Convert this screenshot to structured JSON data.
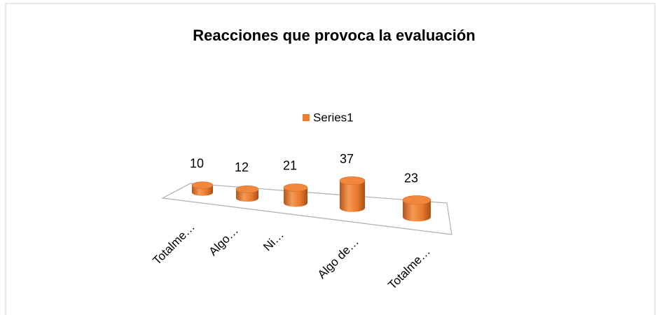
{
  "chart_data": {
    "type": "bar",
    "title": "Reacciones que provoca la evaluación",
    "categories": [
      "Totalme…",
      "Algo…",
      "Ni…",
      "Algo de…",
      "Totalme…"
    ],
    "series": [
      {
        "name": "Series1",
        "color": "#ed7d31",
        "values": [
          10,
          12,
          21,
          37,
          23
        ]
      }
    ],
    "legend": "top",
    "data_labels": true
  }
}
